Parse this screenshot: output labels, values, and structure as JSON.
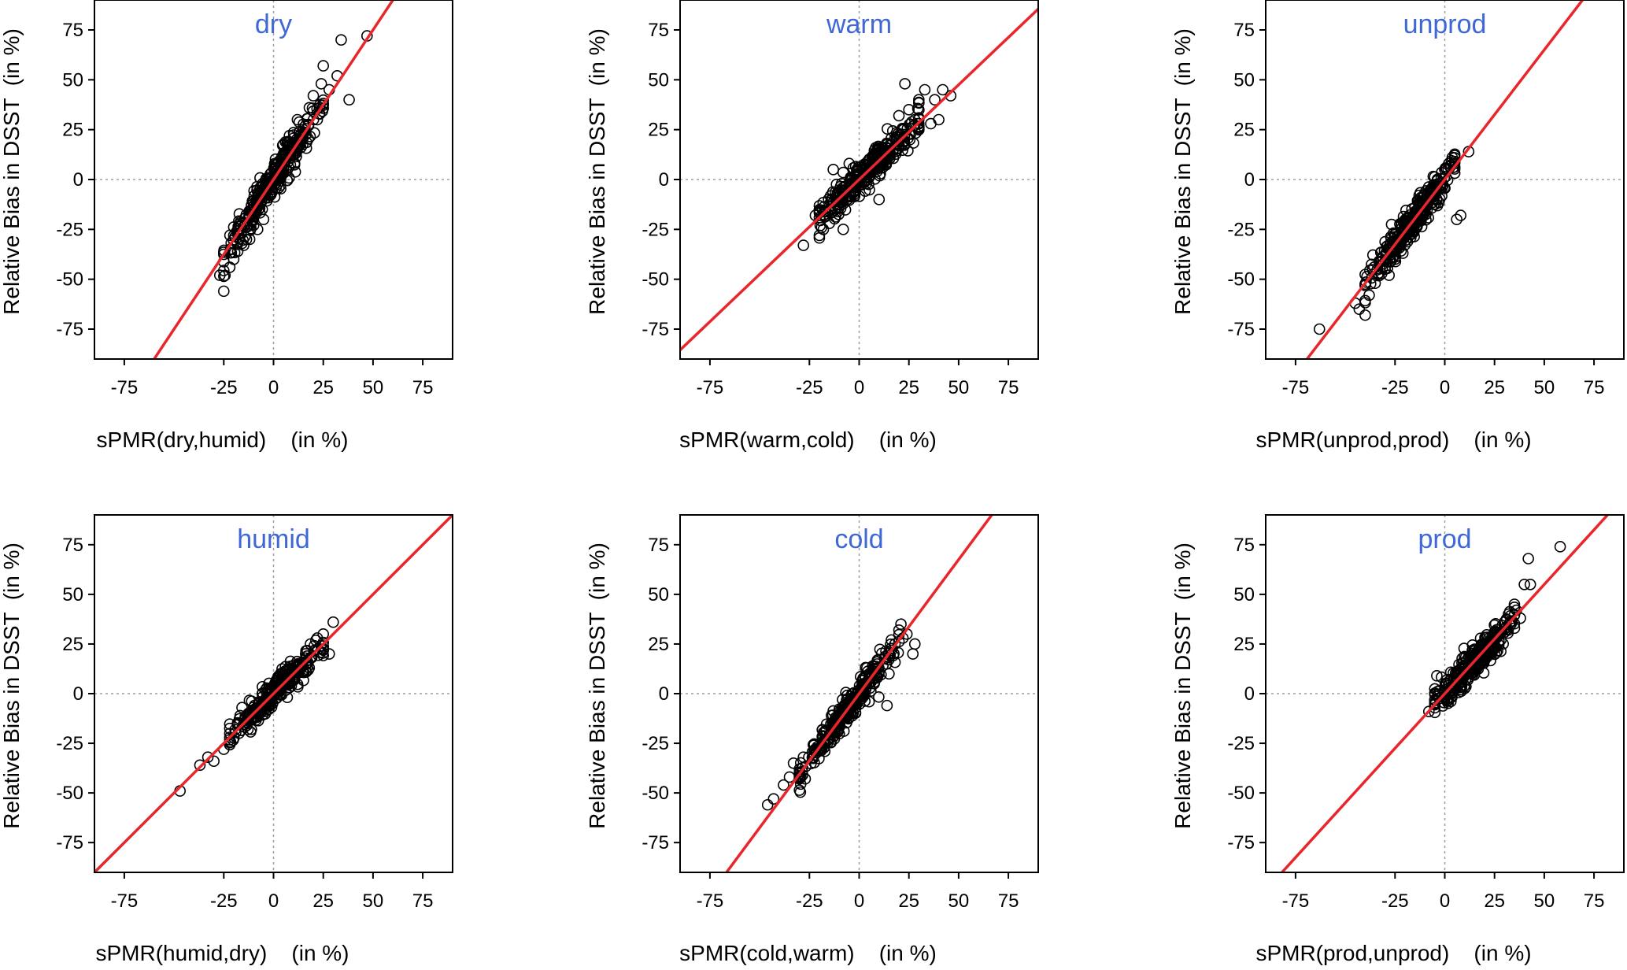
{
  "chart_data": [
    {
      "type": "scatter",
      "title": "dry",
      "xlabel": "sPMR(dry,humid)    (in %)",
      "ylabel": "Relative Bias in DSST  (in %)",
      "xlim": [
        -90,
        90
      ],
      "ylim": [
        -90,
        90
      ],
      "xticks": [
        -75,
        -25,
        0,
        25,
        50,
        75
      ],
      "yticks": [
        75,
        50,
        25,
        0,
        -25,
        -50,
        -75
      ],
      "reference_lines": {
        "x": 0,
        "y": 0,
        "style": "dotted"
      },
      "fit_line": {
        "slope": 1.5,
        "intercept": 0
      },
      "cloud": {
        "x_range": [
          -25,
          25
        ],
        "slope": 1.5,
        "spread": 4,
        "count": 320
      },
      "points": [
        [
          -27,
          -48
        ],
        [
          -25,
          -56
        ],
        [
          -22,
          -44
        ],
        [
          -20,
          -40
        ],
        [
          -18,
          -36
        ],
        [
          -15,
          -33
        ],
        [
          -12,
          -30
        ],
        [
          -10,
          -23
        ],
        [
          -8,
          -25
        ],
        [
          -5,
          -20
        ],
        [
          5,
          12
        ],
        [
          8,
          22
        ],
        [
          12,
          30
        ],
        [
          15,
          25
        ],
        [
          18,
          36
        ],
        [
          20,
          42
        ],
        [
          22,
          30
        ],
        [
          24,
          48
        ],
        [
          25,
          57
        ],
        [
          28,
          45
        ],
        [
          32,
          52
        ],
        [
          38,
          40
        ],
        [
          34,
          70
        ],
        [
          47,
          72
        ]
      ],
      "grid": false
    },
    {
      "type": "scatter",
      "title": "warm",
      "xlabel": "sPMR(warm,cold)    (in %)",
      "ylabel": "Relative Bias in DSST  (in %)",
      "xlim": [
        -90,
        90
      ],
      "ylim": [
        -90,
        90
      ],
      "xticks": [
        -75,
        -25,
        0,
        25,
        50,
        75
      ],
      "yticks": [
        75,
        50,
        25,
        0,
        -25,
        -50,
        -75
      ],
      "reference_lines": {
        "x": 0,
        "y": 0,
        "style": "dotted"
      },
      "fit_line": {
        "slope": 0.95,
        "intercept": 0
      },
      "cloud": {
        "x_range": [
          -20,
          30
        ],
        "slope": 0.95,
        "spread": 4,
        "count": 320
      },
      "points": [
        [
          -28,
          -33
        ],
        [
          -22,
          -18
        ],
        [
          -20,
          -28
        ],
        [
          -18,
          -25
        ],
        [
          -15,
          -22
        ],
        [
          -14,
          -10
        ],
        [
          -8,
          -25
        ],
        [
          -13,
          5
        ],
        [
          -5,
          8
        ],
        [
          10,
          -10
        ],
        [
          20,
          32
        ],
        [
          23,
          48
        ],
        [
          25,
          35
        ],
        [
          28,
          30
        ],
        [
          30,
          40
        ],
        [
          33,
          45
        ],
        [
          36,
          28
        ],
        [
          38,
          40
        ],
        [
          40,
          30
        ],
        [
          42,
          45
        ],
        [
          46,
          42
        ]
      ],
      "grid": false
    },
    {
      "type": "scatter",
      "title": "unprod",
      "xlabel": "sPMR(unprod,prod)    (in %)",
      "ylabel": "Relative Bias in DSST  (in %)",
      "xlim": [
        -90,
        90
      ],
      "ylim": [
        -90,
        90
      ],
      "xticks": [
        -75,
        -25,
        0,
        25,
        50,
        75
      ],
      "yticks": [
        75,
        50,
        25,
        0,
        -25,
        -50,
        -75
      ],
      "reference_lines": {
        "x": 0,
        "y": 0,
        "style": "dotted"
      },
      "fit_line": {
        "slope": 1.3,
        "intercept": 0
      },
      "cloud": {
        "x_range": [
          -40,
          5
        ],
        "slope": 1.3,
        "spread": 4,
        "count": 320
      },
      "points": [
        [
          -63,
          -75
        ],
        [
          -45,
          -62
        ],
        [
          -43,
          -65
        ],
        [
          -40,
          -68
        ],
        [
          -38,
          -58
        ],
        [
          -35,
          -52
        ],
        [
          -30,
          -45
        ],
        [
          -28,
          -48
        ],
        [
          -25,
          -40
        ],
        [
          0,
          5
        ],
        [
          2,
          8
        ],
        [
          5,
          12
        ],
        [
          12,
          14
        ],
        [
          6,
          -20
        ],
        [
          8,
          -18
        ]
      ],
      "grid": false
    },
    {
      "type": "scatter",
      "title": "humid",
      "xlabel": "sPMR(humid,dry)    (in %)",
      "ylabel": "Relative Bias in DSST  (in %)",
      "xlim": [
        -90,
        90
      ],
      "ylim": [
        -90,
        90
      ],
      "xticks": [
        -75,
        -25,
        0,
        25,
        50,
        75
      ],
      "yticks": [
        75,
        50,
        25,
        0,
        -25,
        -50,
        -75
      ],
      "reference_lines": {
        "x": 0,
        "y": 0,
        "style": "dotted"
      },
      "fit_line": {
        "slope": 1.0,
        "intercept": 0
      },
      "cloud": {
        "x_range": [
          -22,
          25
        ],
        "slope": 1.0,
        "spread": 3,
        "count": 300
      },
      "points": [
        [
          -47,
          -49
        ],
        [
          -37,
          -36
        ],
        [
          -33,
          -32
        ],
        [
          -30,
          -34
        ],
        [
          -25,
          -28
        ],
        [
          -22,
          -22
        ],
        [
          22,
          28
        ],
        [
          25,
          30
        ],
        [
          28,
          20
        ],
        [
          30,
          36
        ]
      ],
      "grid": false
    },
    {
      "type": "scatter",
      "title": "cold",
      "xlabel": "sPMR(cold,warm)    (in %)",
      "ylabel": "Relative Bias in DSST  (in %)",
      "xlim": [
        -90,
        90
      ],
      "ylim": [
        -90,
        90
      ],
      "xticks": [
        -75,
        -25,
        0,
        25,
        50,
        75
      ],
      "yticks": [
        75,
        50,
        25,
        0,
        -25,
        -50,
        -75
      ],
      "reference_lines": {
        "x": 0,
        "y": 0,
        "style": "dotted"
      },
      "fit_line": {
        "slope": 1.35,
        "intercept": 0
      },
      "cloud": {
        "x_range": [
          -30,
          20
        ],
        "slope": 1.35,
        "spread": 4,
        "count": 300
      },
      "points": [
        [
          -46,
          -56
        ],
        [
          -43,
          -53
        ],
        [
          -38,
          -46
        ],
        [
          -35,
          -42
        ],
        [
          -33,
          -35
        ],
        [
          -30,
          -38
        ],
        [
          -28,
          -32
        ],
        [
          15,
          10
        ],
        [
          18,
          25
        ],
        [
          20,
          32
        ],
        [
          21,
          35
        ],
        [
          22,
          28
        ],
        [
          24,
          30
        ],
        [
          28,
          25
        ],
        [
          27,
          20
        ],
        [
          14,
          -6
        ]
      ],
      "grid": false
    },
    {
      "type": "scatter",
      "title": "prod",
      "xlabel": "sPMR(prod,unprod)    (in %)",
      "ylabel": "Relative Bias in DSST  (in %)",
      "xlim": [
        -90,
        90
      ],
      "ylim": [
        -90,
        90
      ],
      "xticks": [
        -75,
        -25,
        0,
        25,
        50,
        75
      ],
      "yticks": [
        75,
        50,
        25,
        0,
        -25,
        -50,
        -75
      ],
      "reference_lines": {
        "x": 0,
        "y": 0,
        "style": "dotted"
      },
      "fit_line": {
        "slope": 1.1,
        "intercept": 0
      },
      "cloud": {
        "x_range": [
          -5,
          35
        ],
        "slope": 1.1,
        "spread": 4,
        "count": 320
      },
      "points": [
        [
          -8,
          -9
        ],
        [
          -5,
          -5
        ],
        [
          -4,
          9
        ],
        [
          0,
          -2
        ],
        [
          2,
          4
        ],
        [
          30,
          36
        ],
        [
          32,
          40
        ],
        [
          35,
          45
        ],
        [
          36,
          42
        ],
        [
          38,
          38
        ],
        [
          40,
          55
        ],
        [
          43,
          55
        ],
        [
          42,
          68
        ],
        [
          58,
          74
        ]
      ],
      "grid": false
    }
  ],
  "colors": {
    "fit_line": "#e8262b",
    "title": "#3f67d6",
    "points": "#000000",
    "reference_lines": "#9e9e9e",
    "frame": "#000000"
  }
}
